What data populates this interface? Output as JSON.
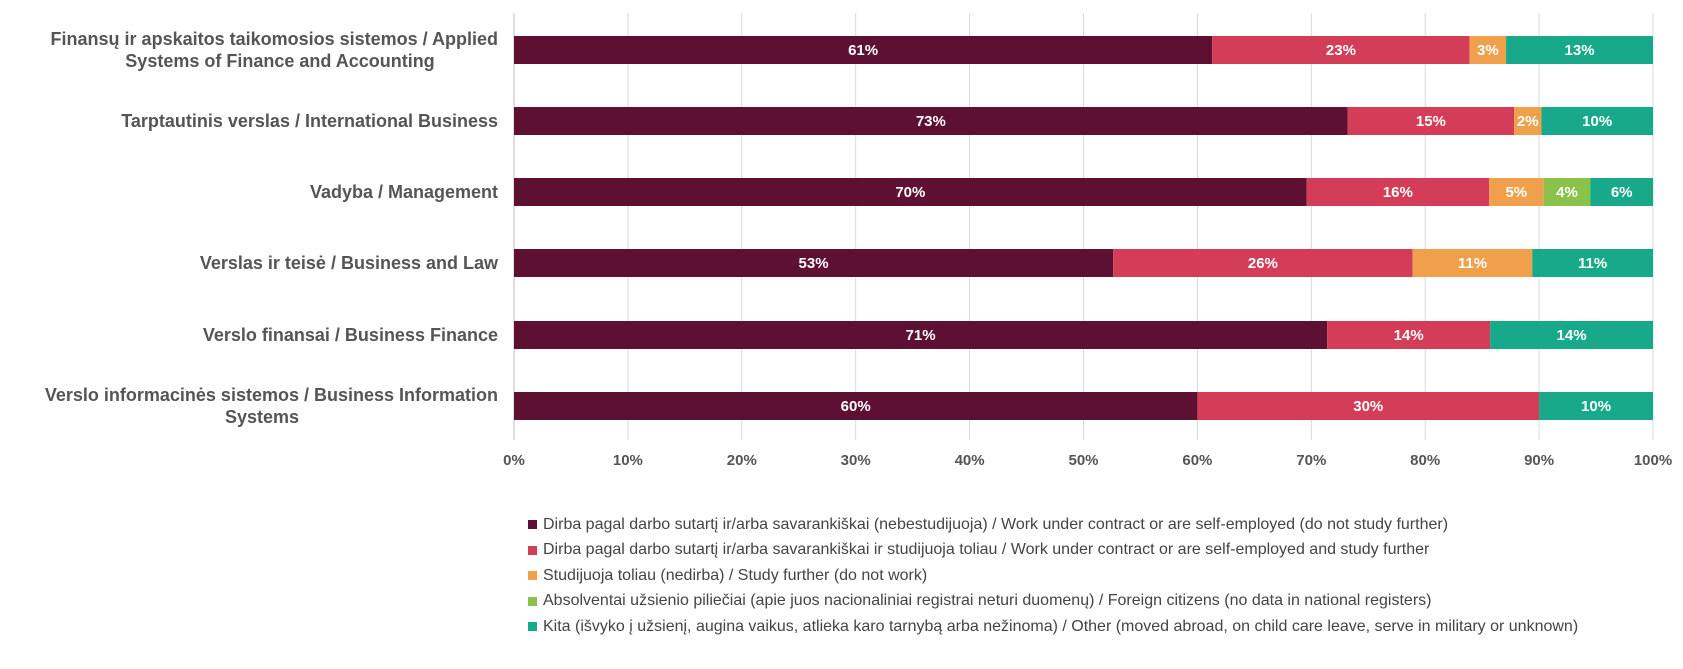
{
  "chart_data": {
    "type": "bar",
    "orientation": "horizontal",
    "stacked": true,
    "categories": [
      [
        "Finansų ir apskaitos taikomosios sistemos / Applied",
        "Systems of Finance and Accounting"
      ],
      [
        "Tarptautinis verslas / International Business"
      ],
      [
        "Vadyba / Management"
      ],
      [
        "Verslas ir teisė / Business and Law"
      ],
      [
        "Verslo finansai / Business Finance"
      ],
      [
        "Verslo informacinės sistemos / Business Information",
        "Systems"
      ]
    ],
    "series": [
      {
        "name": "Dirba pagal darbo sutartį ir/arba savarankiškai (nebestudijuoja) / Work under contract or are self-employed (do not study further)",
        "color": "#5e1032",
        "values": [
          61.3,
          73.2,
          69.6,
          52.6,
          71.4,
          60.0
        ],
        "labels": [
          "61%",
          "73%",
          "70%",
          "53%",
          "71%",
          "60%"
        ]
      },
      {
        "name": "Dirba pagal darbo sutartį ir/arba savarankiškai  ir studijuoja toliau / Work under contract or are self-employed and study further",
        "color": "#d33d57",
        "values": [
          22.6,
          14.6,
          16.0,
          26.3,
          14.3,
          30.0
        ],
        "labels": [
          "23%",
          "15%",
          "16%",
          "26%",
          "14%",
          "30%"
        ]
      },
      {
        "name": "Studijuoja toliau (nedirba) / Study further (do not work)",
        "color": "#f0a04b",
        "values": [
          3.2,
          2.4,
          4.8,
          10.5,
          0,
          0
        ],
        "labels": [
          "3%",
          "2%",
          "5%",
          "11%",
          "",
          ""
        ]
      },
      {
        "name": "Absolventai užsienio piliečiai (apie juos nacionaliniai registrai neturi duomenų) / Foreign citizens (no data in national registers)",
        "color": "#8bc34a",
        "values": [
          0,
          0,
          4.1,
          0,
          0,
          0
        ],
        "labels": [
          "",
          "",
          "4%",
          "",
          "",
          ""
        ]
      },
      {
        "name": "Kita (išvyko į užsienį, augina vaikus, atlieka karo tarnybą arba nežinoma) / Other (moved abroad, on child care leave, serve in military or unknown)",
        "color": "#17a98a",
        "values": [
          12.9,
          9.8,
          5.5,
          10.6,
          14.3,
          10.0
        ],
        "labels": [
          "13%",
          "10%",
          "6%",
          "11%",
          "14%",
          "10%"
        ]
      }
    ],
    "x_ticks": [
      "0%",
      "10%",
      "20%",
      "30%",
      "40%",
      "50%",
      "60%",
      "70%",
      "80%",
      "90%",
      "100%"
    ],
    "xlim": [
      0,
      100
    ],
    "grid": true,
    "legend_position": "bottom",
    "title": "",
    "xlabel": "",
    "ylabel": ""
  }
}
